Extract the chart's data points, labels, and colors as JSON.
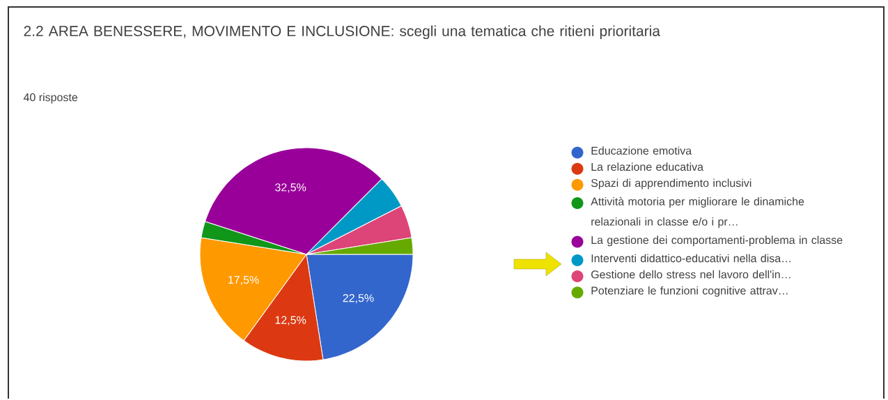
{
  "chart_data": {
    "type": "pie",
    "title": "2.2 AREA BENESSERE, MOVIMENTO E INCLUSIONE: scegli una tematica che ritieni prioritaria",
    "subtitle": "40 risposte",
    "categories": [
      "Educazione emotiva",
      "La relazione educativa",
      "Spazi di apprendimento inclusivi",
      "Attività motoria per migliorare le dinamiche relazionali in classe e/o i pr…",
      "La gestione dei comportamenti-problema in classe",
      "Interventi didattico-educativi nella disa…",
      "Gestione dello stress nel lavoro dell'in…",
      "Potenziare le funzioni cognitive attrav…"
    ],
    "values": [
      22.5,
      12.5,
      17.5,
      2.5,
      32.5,
      5,
      5,
      2.5
    ],
    "value_labels": [
      "22,5%",
      "12,5%",
      "17,5%",
      null,
      "32,5%",
      null,
      null,
      null
    ],
    "colors": [
      "#3366cc",
      "#dc3912",
      "#ff9900",
      "#109618",
      "#990099",
      "#0099c6",
      "#dd4477",
      "#66aa00"
    ],
    "legend": "right"
  }
}
